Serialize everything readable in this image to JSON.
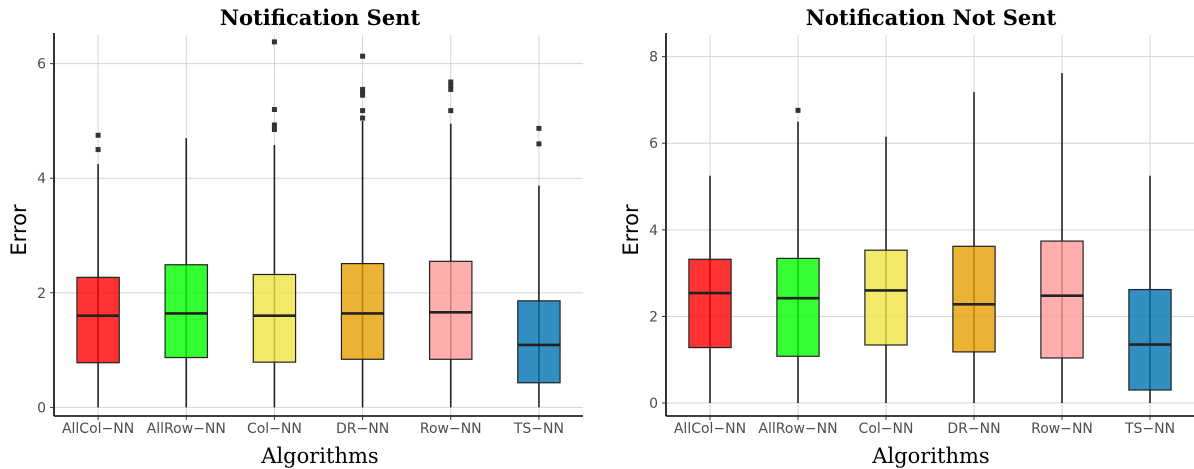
{
  "xlabel": "Algorithms",
  "ylabel": "Error",
  "colors": [
    "#ff0000",
    "#00ff00",
    "#f0e442",
    "#e69f00",
    "#ff9999",
    "#0072b2"
  ],
  "chart_data": [
    {
      "type": "box",
      "title": "Notification Sent",
      "xlabel": "Algorithms",
      "ylabel": "Error",
      "categories": [
        "AllCol−NN",
        "AllRow−NN",
        "Col−NN",
        "DR−NN",
        "Row−NN",
        "TS−NN"
      ],
      "ylim": [
        -0.15,
        6.5
      ],
      "yticks": [
        0,
        2,
        4,
        6
      ],
      "grid": true,
      "boxes": [
        {
          "min": 0,
          "q1": 0.78,
          "median": 1.6,
          "q3": 2.27,
          "max": 4.25,
          "outliers": [
            4.5,
            4.75
          ]
        },
        {
          "min": 0,
          "q1": 0.87,
          "median": 1.64,
          "q3": 2.49,
          "max": 4.7,
          "outliers": []
        },
        {
          "min": 0,
          "q1": 0.79,
          "median": 1.6,
          "q3": 2.32,
          "max": 4.58,
          "outliers": [
            4.85,
            4.93,
            5.2,
            6.38
          ]
        },
        {
          "min": 0,
          "q1": 0.84,
          "median": 1.64,
          "q3": 2.51,
          "max": 5.0,
          "outliers": [
            5.05,
            5.18,
            5.45,
            5.5,
            5.55,
            6.13
          ]
        },
        {
          "min": 0,
          "q1": 0.84,
          "median": 1.66,
          "q3": 2.55,
          "max": 4.95,
          "outliers": [
            5.18,
            5.55,
            5.62,
            5.68
          ]
        },
        {
          "min": 0,
          "q1": 0.43,
          "median": 1.09,
          "q3": 1.86,
          "max": 3.87,
          "outliers": [
            4.6,
            4.87
          ]
        }
      ]
    },
    {
      "type": "box",
      "title": "Notification Not Sent",
      "xlabel": "Algorithms",
      "ylabel": "Error",
      "categories": [
        "AllCol−NN",
        "AllRow−NN",
        "Col−NN",
        "DR−NN",
        "Row−NN",
        "TS−NN"
      ],
      "ylim": [
        -0.3,
        8.5
      ],
      "yticks": [
        0,
        2,
        4,
        6,
        8
      ],
      "grid": true,
      "boxes": [
        {
          "min": 0,
          "q1": 1.28,
          "median": 2.54,
          "q3": 3.32,
          "max": 5.25,
          "outliers": []
        },
        {
          "min": 0,
          "q1": 1.08,
          "median": 2.42,
          "q3": 3.34,
          "max": 6.5,
          "outliers": [
            6.76
          ]
        },
        {
          "min": 0,
          "q1": 1.34,
          "median": 2.6,
          "q3": 3.53,
          "max": 6.15,
          "outliers": []
        },
        {
          "min": 0,
          "q1": 1.18,
          "median": 2.28,
          "q3": 3.62,
          "max": 7.18,
          "outliers": []
        },
        {
          "min": 0,
          "q1": 1.04,
          "median": 2.48,
          "q3": 3.74,
          "max": 7.62,
          "outliers": []
        },
        {
          "min": 0,
          "q1": 0.3,
          "median": 1.35,
          "q3": 2.62,
          "max": 5.25,
          "outliers": []
        }
      ]
    }
  ]
}
